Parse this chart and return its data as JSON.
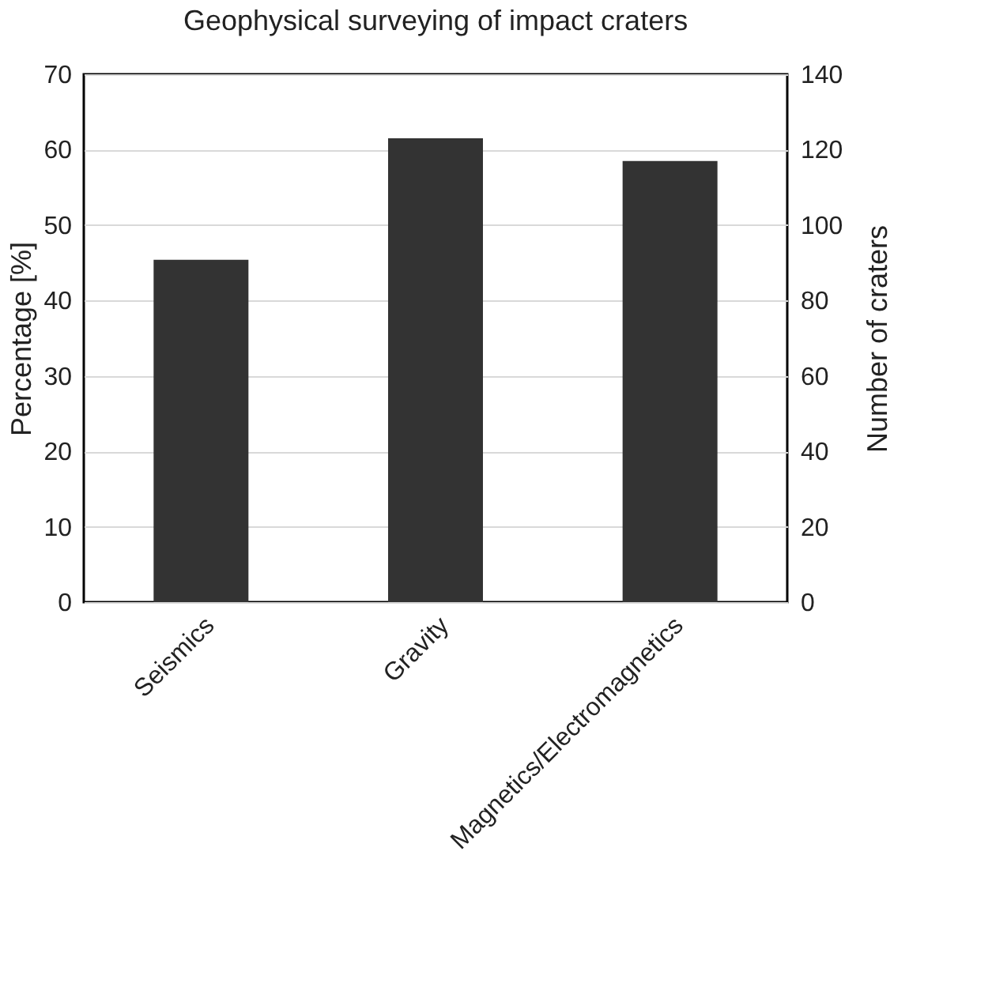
{
  "chart_data": {
    "type": "bar",
    "title": "Geophysical surveying of impact craters",
    "categories": [
      "Seismics",
      "Gravity",
      "Magnetics/Electromagnetics"
    ],
    "series": [
      {
        "color": "#333333",
        "values": [
          45.4,
          61.5,
          58.5
        ]
      }
    ],
    "ylabel": "Percentage [%]",
    "y2label": "Number of craters",
    "ylim": [
      0,
      70
    ],
    "yticks": [
      0,
      10,
      20,
      30,
      40,
      50,
      60,
      70
    ],
    "y2lim": [
      0,
      140
    ],
    "y2ticks": [
      0,
      20,
      40,
      60,
      80,
      100,
      120,
      140
    ],
    "grid": "y"
  }
}
